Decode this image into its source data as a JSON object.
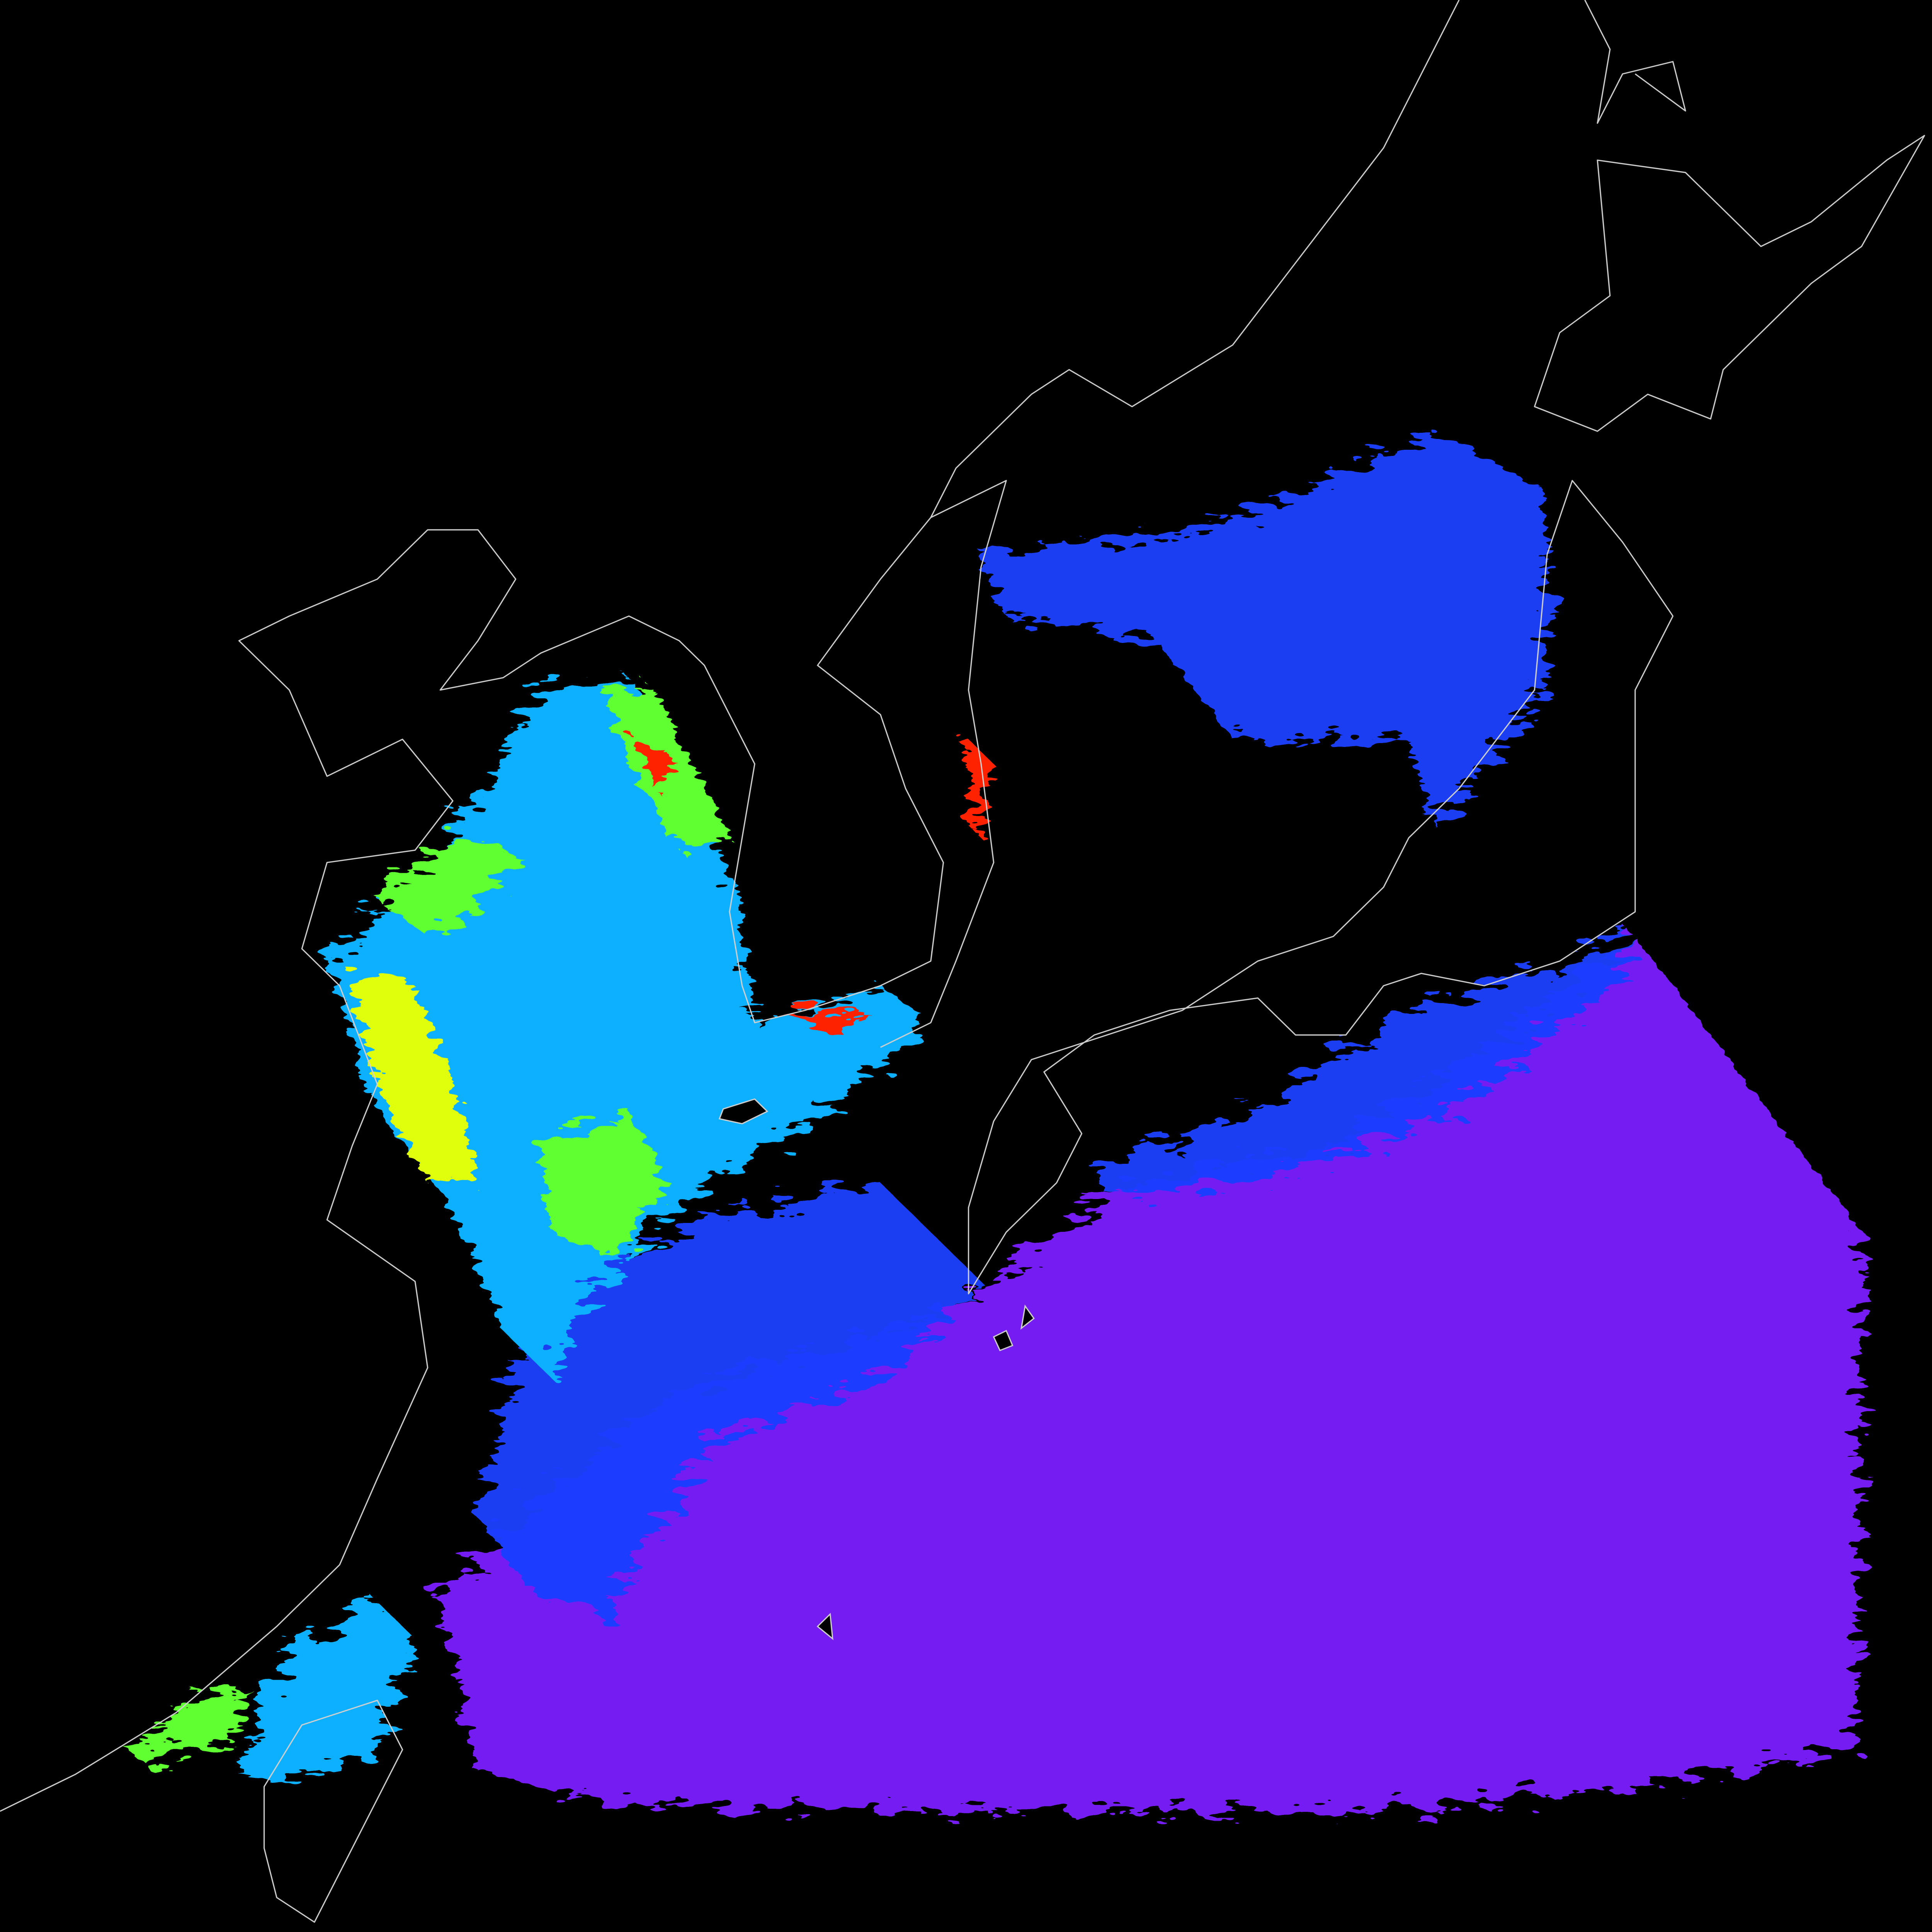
{
  "map": {
    "background_color": "#000000",
    "coastline_color": "#cfcfcf",
    "colormap": [
      "#7a00ff",
      "#3a1cff",
      "#0050ff",
      "#00a0ff",
      "#00e0e0",
      "#40ff40",
      "#e0ff00",
      "#ff2000"
    ],
    "colors": {
      "open_ocean": "#7a1cff",
      "shelf_blue": "#1a40ff",
      "coastal_cyan": "#10b0ff",
      "coastal_green": "#60ff30",
      "coastal_yellow": "#e0ff10",
      "coastal_red": "#ff2000"
    }
  }
}
